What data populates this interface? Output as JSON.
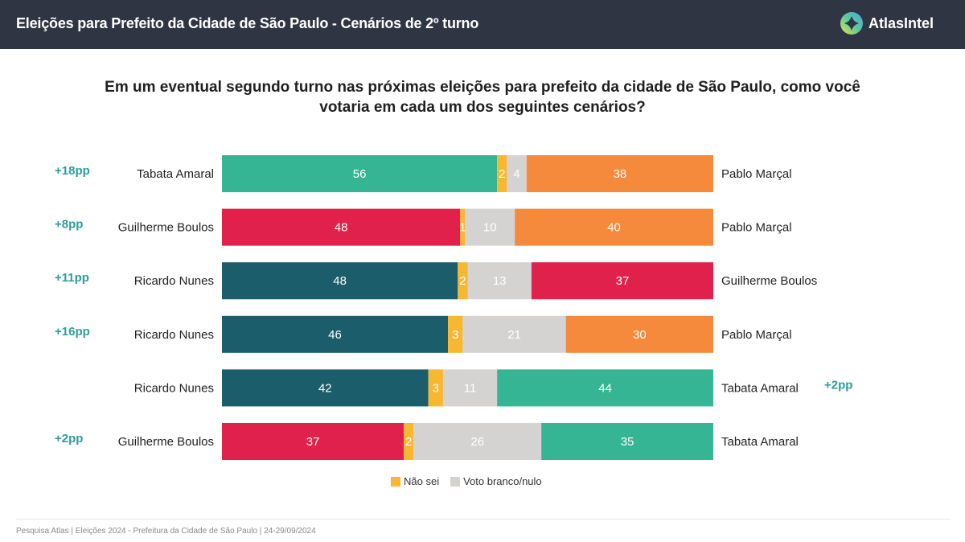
{
  "header": {
    "title": "Eleições para Prefeito da Cidade de São Paulo - Cenários de 2º turno",
    "brand": "AtlasIntel",
    "logo_icon": "atlasintel-logo-icon"
  },
  "question": "Em um eventual segundo turno nas próximas eleições para prefeito da cidade de São Paulo, como você votaria em cada um dos seguintes cenários?",
  "legend": [
    {
      "label": "Não sei",
      "color": "#f7b731"
    },
    {
      "label": "Voto branco/nulo",
      "color": "#d5d3d1"
    }
  ],
  "footer": "Pesquisa Atlas  |  Eleições 2024 - Prefeitura da Cidade de São Paulo  |  24-29/09/2024",
  "colors": {
    "Tabata Amaral": "#36b594",
    "Guilherme Boulos": "#e0214b",
    "Ricardo Nunes": "#1b5d6a",
    "Pablo Marçal": "#f58a3d",
    "nao_sei": "#f7b731",
    "branco_nulo": "#d5d3d1",
    "lead_text": "#2a9d9a"
  },
  "chart_data": {
    "type": "bar",
    "orientation": "horizontal-stacked",
    "title": "Em um eventual segundo turno nas próximas eleições para prefeito da cidade de São Paulo, como você votaria em cada um dos seguintes cenários?",
    "xlim": [
      0,
      100
    ],
    "segments": [
      "left_candidate",
      "Não sei",
      "Voto branco/nulo",
      "right_candidate"
    ],
    "scenarios": [
      {
        "left": "Tabata Amaral",
        "left_value": 56,
        "nao_sei": 2,
        "branco_nulo": 4,
        "right": "Pablo Marçal",
        "right_value": 38,
        "lead": "+18pp",
        "lead_side": "left"
      },
      {
        "left": "Guilherme Boulos",
        "left_value": 48,
        "nao_sei": 1,
        "branco_nulo": 10,
        "right": "Pablo Marçal",
        "right_value": 40,
        "lead": "+8pp",
        "lead_side": "left"
      },
      {
        "left": "Ricardo Nunes",
        "left_value": 48,
        "nao_sei": 2,
        "branco_nulo": 13,
        "right": "Guilherme Boulos",
        "right_value": 37,
        "lead": "+11pp",
        "lead_side": "left"
      },
      {
        "left": "Ricardo Nunes",
        "left_value": 46,
        "nao_sei": 3,
        "branco_nulo": 21,
        "right": "Pablo Marçal",
        "right_value": 30,
        "lead": "+16pp",
        "lead_side": "left"
      },
      {
        "left": "Ricardo Nunes",
        "left_value": 42,
        "nao_sei": 3,
        "branco_nulo": 11,
        "right": "Tabata Amaral",
        "right_value": 44,
        "lead": "+2pp",
        "lead_side": "right"
      },
      {
        "left": "Guilherme Boulos",
        "left_value": 37,
        "nao_sei": 2,
        "branco_nulo": 26,
        "right": "Tabata Amaral",
        "right_value": 35,
        "lead": "+2pp",
        "lead_side": "left"
      }
    ]
  }
}
